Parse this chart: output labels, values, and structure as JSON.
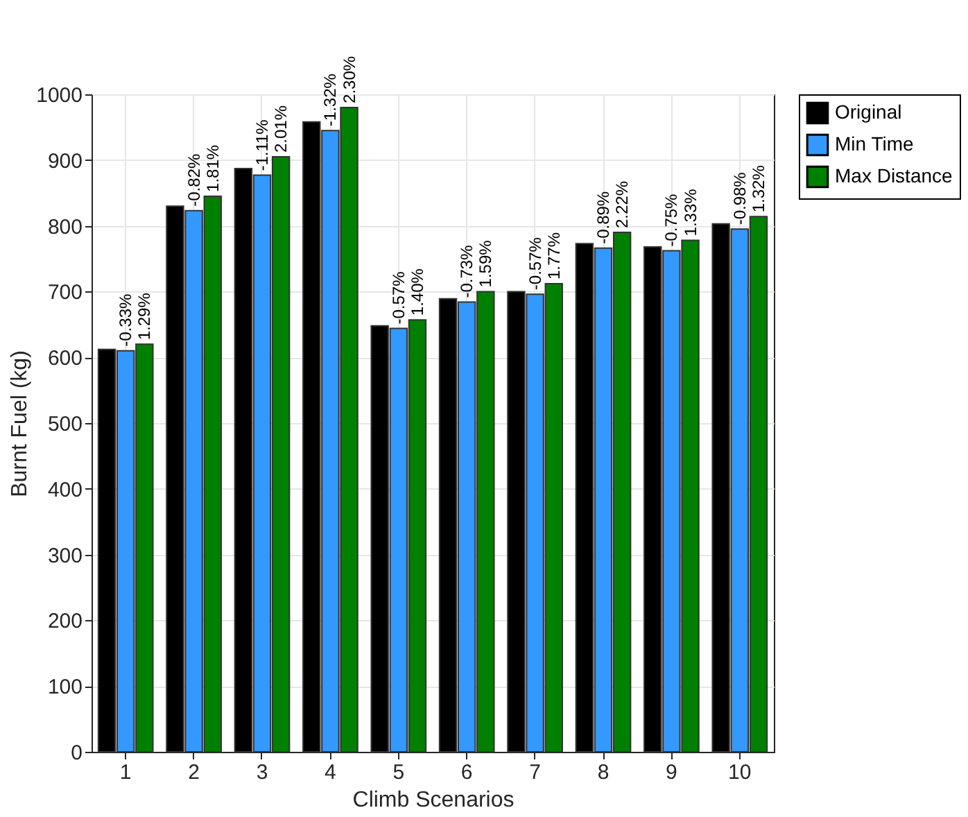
{
  "chart_data": {
    "type": "bar",
    "xlabel": "Climb Scenarios",
    "ylabel": "Burnt Fuel (kg)",
    "categories": [
      "1",
      "2",
      "3",
      "4",
      "5",
      "6",
      "7",
      "8",
      "9",
      "10"
    ],
    "series": [
      {
        "name": "Original",
        "color": "#000000",
        "values": [
          612,
          830,
          887,
          958,
          648,
          689,
          700,
          773,
          768,
          803
        ]
      },
      {
        "name": "Min Time",
        "color": "#3399ff",
        "values": [
          610,
          823,
          877,
          945,
          644,
          684,
          696,
          766,
          762,
          795
        ]
      },
      {
        "name": "Max Distance",
        "color": "#008000",
        "values": [
          620,
          845,
          905,
          980,
          657,
          700,
          712,
          790,
          778,
          814
        ]
      }
    ],
    "annotations": [
      {
        "text": "-0.33%",
        "x": "1",
        "y": 610
      },
      "1.29%",
      {
        "text": "-0.82%",
        "x": "2",
        "y": 823
      },
      "1.81%",
      {
        "text": "-1.11%",
        "x": "3",
        "y": 877
      },
      "2.01%",
      {
        "text": "-1.32%",
        "x": "4",
        "y": 945
      },
      "2.30%",
      {
        "text": "-0.57%",
        "x": "5",
        "y": 644
      },
      "1.40%",
      {
        "text": "-0.73%",
        "x": "6",
        "y": 684
      },
      "1.59%",
      {
        "text": "-0.57%",
        "x": "7",
        "y": 696
      },
      "1.77%",
      {
        "text": "-0.89%",
        "x": "8",
        "y": 766
      },
      "2.22%",
      {
        "text": "-0.75%",
        "x": "9",
        "y": 762
      },
      "1.33%",
      {
        "text": "-0.98%",
        "x": "10",
        "y": 795
      },
      "1.32%"
    ],
    "ylim": [
      0,
      1000
    ],
    "yticks": [
      0,
      100,
      200,
      300,
      400,
      500,
      600,
      700,
      800,
      900,
      {
        "value": 1000,
        "label": "1000"
      }
    ],
    "grid": true,
    "legend": "right"
  }
}
